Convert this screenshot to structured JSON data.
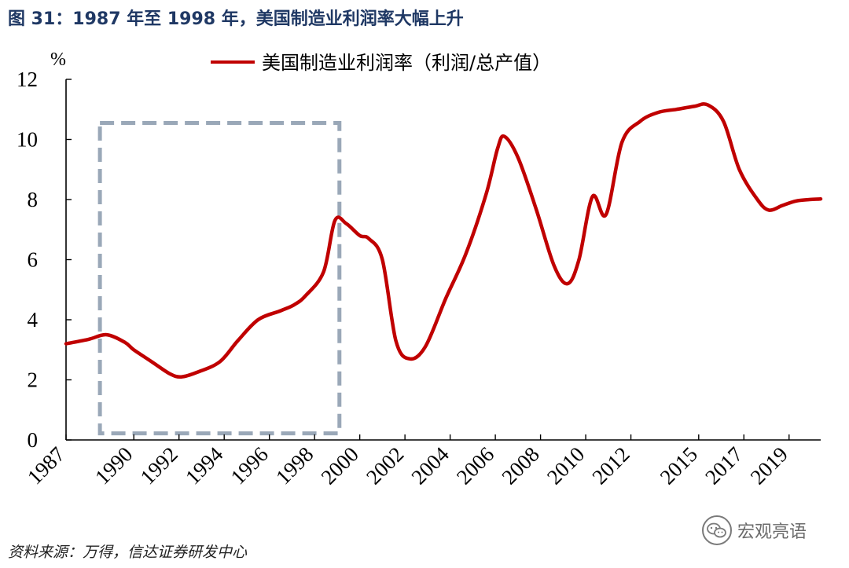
{
  "figure": {
    "title": "图 31：1987 年至 1998 年，美国制造业利润率大幅上升",
    "source": "资料来源：万得，信达证券研发中心"
  },
  "watermark": {
    "text": "宏观亮语",
    "icon": "wechat-icon"
  },
  "chart_data": {
    "type": "line",
    "ylabel": "%",
    "ylim": [
      0,
      12
    ],
    "yticks": [
      0,
      2,
      4,
      6,
      8,
      10,
      12
    ],
    "xlim": [
      1987,
      2020.4
    ],
    "xticks": [
      "1987",
      "1990",
      "1992",
      "1994",
      "1996",
      "1998",
      "2000",
      "2002",
      "2004",
      "2006",
      "2008",
      "2010",
      "2012",
      "2015",
      "2017",
      "2019"
    ],
    "grid": false,
    "legend_position": "top",
    "series": [
      {
        "name": "美国制造业利润率（利润/总产值）",
        "color": "#c00000",
        "x": [
          1987.0,
          1988.0,
          1988.8,
          1989.6,
          1990.0,
          1990.8,
          1991.6,
          1992.1,
          1992.8,
          1993.8,
          1994.6,
          1995.5,
          1996.5,
          1997.1,
          1997.6,
          1998.4,
          1998.9,
          1999.4,
          2000.0,
          2000.4,
          2001.0,
          2001.6,
          2002.2,
          2002.9,
          2003.8,
          2004.7,
          2005.6,
          2006.1,
          2006.4,
          2007.0,
          2007.8,
          2008.6,
          2009.2,
          2009.7,
          2010.3,
          2010.9,
          2011.6,
          2012.4,
          2013.2,
          2014.0,
          2014.8,
          2015.4,
          2016.1,
          2016.8,
          2017.6,
          2018.1,
          2018.7,
          2019.3,
          2019.9,
          2020.4
        ],
        "y": [
          3.2,
          3.35,
          3.5,
          3.25,
          3.0,
          2.6,
          2.2,
          2.1,
          2.25,
          2.6,
          3.3,
          4.0,
          4.3,
          4.5,
          4.8,
          5.6,
          7.3,
          7.2,
          6.8,
          6.7,
          6.0,
          3.3,
          2.7,
          3.1,
          4.7,
          6.2,
          8.2,
          9.7,
          10.1,
          9.4,
          7.7,
          5.8,
          5.2,
          6.0,
          8.1,
          7.5,
          9.9,
          10.6,
          10.9,
          11.0,
          11.1,
          11.15,
          10.6,
          9.0,
          8.0,
          7.65,
          7.8,
          7.95,
          8.0,
          8.02
        ]
      }
    ],
    "annotations": [
      {
        "type": "dashed-box",
        "x_range": [
          1988.5,
          1999.1
        ],
        "y_range": [
          0.22,
          10.55
        ],
        "color": "#9aa8b8"
      }
    ]
  }
}
